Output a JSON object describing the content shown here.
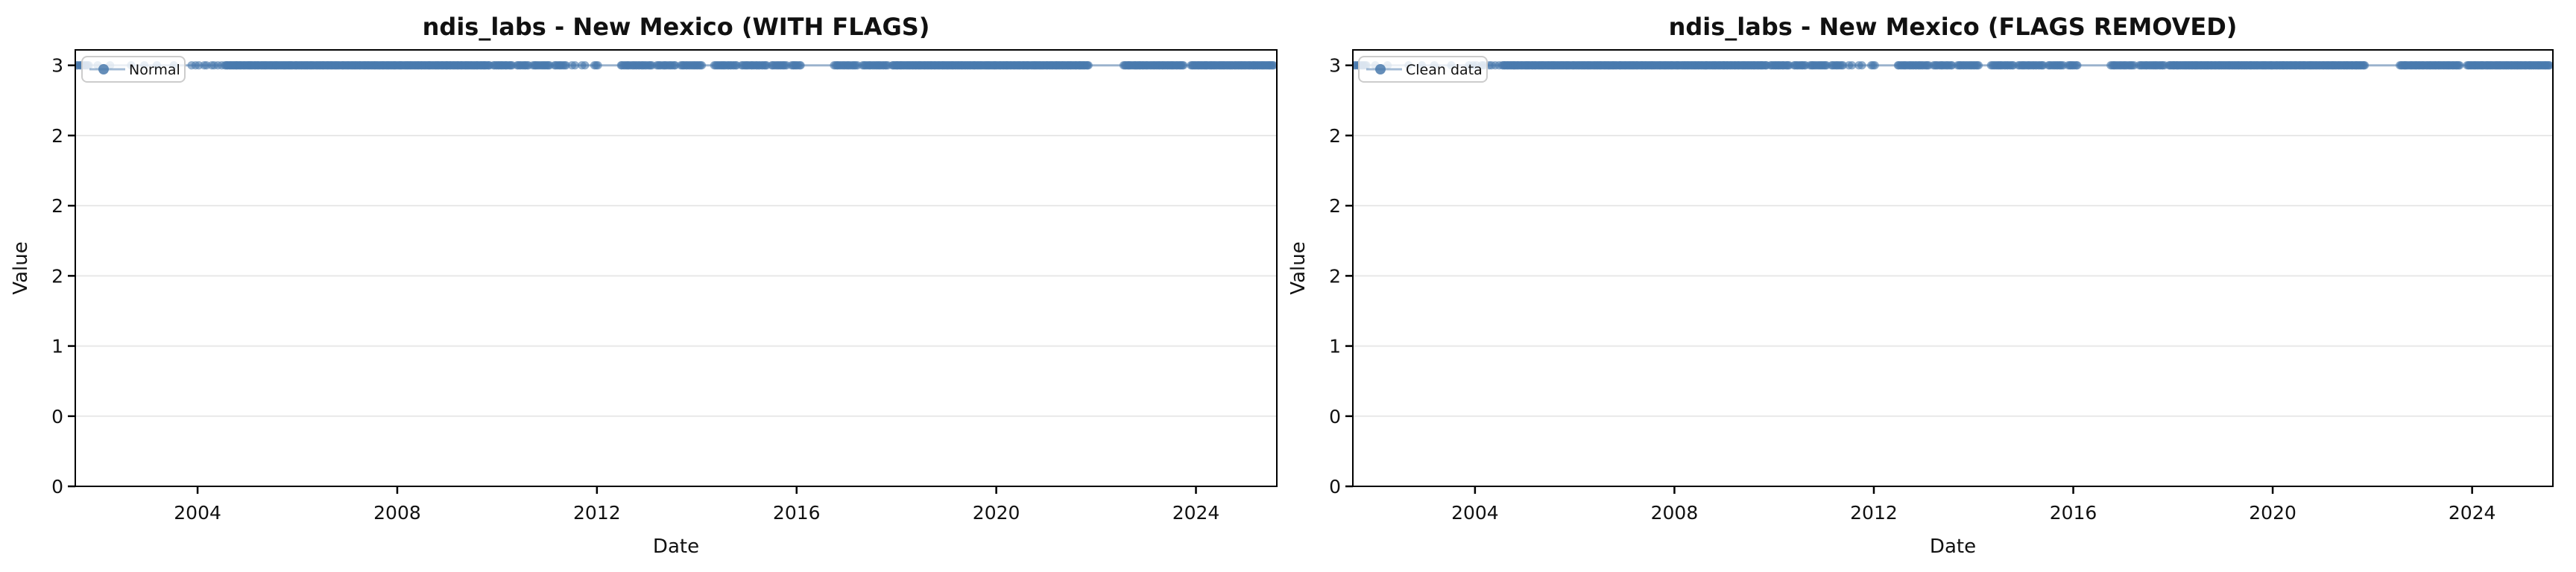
{
  "figure": {
    "background": "#ffffff",
    "marker_color": "#4a7aad",
    "marker_opacity": 0.6,
    "line_color": "#4a7aad",
    "line_opacity": 0.5,
    "grid_color": "#e8e8e8",
    "spine_color": "#000000",
    "legend_border_color": "#cccccc",
    "text_color": "#111111"
  },
  "chart_data": [
    {
      "type": "scatter",
      "title": "ndis_labs - New Mexico (WITH FLAGS)",
      "xlabel": "Date",
      "ylabel": "Value",
      "legend_label": "Normal",
      "legend_position": "upper left",
      "grid": "horizontal",
      "xlim": [
        2001.55,
        2025.62
      ],
      "ylim": [
        0,
        3.11
      ],
      "x_ticks": [
        2004,
        2008,
        2012,
        2016,
        2020,
        2024
      ],
      "y_ticks": {
        "values": [
          0,
          0.5,
          1,
          1.5,
          2,
          2.5,
          3
        ],
        "labels": [
          "0",
          "0",
          "1",
          "2",
          "2",
          "2",
          "3"
        ]
      },
      "series_value": 3.0,
      "segments": [
        {
          "start": 2001.58,
          "end": 2001.82,
          "count": 10
        },
        {
          "start": 2002.0,
          "end": 2003.55,
          "count": 6
        },
        {
          "start": 2003.88,
          "end": 2004.5,
          "count": 9
        },
        {
          "start": 2004.55,
          "end": 2009.85,
          "count": 265
        },
        {
          "start": 2009.93,
          "end": 2010.3,
          "count": 17
        },
        {
          "start": 2010.4,
          "end": 2010.63,
          "count": 10
        },
        {
          "start": 2010.72,
          "end": 2011.05,
          "count": 14
        },
        {
          "start": 2011.15,
          "end": 2011.38,
          "count": 9
        },
        {
          "start": 2011.5,
          "end": 2011.56,
          "count": 2
        },
        {
          "start": 2011.7,
          "end": 2011.76,
          "count": 2
        },
        {
          "start": 2011.95,
          "end": 2012.02,
          "count": 3
        },
        {
          "start": 2012.48,
          "end": 2013.1,
          "count": 24
        },
        {
          "start": 2013.2,
          "end": 2013.57,
          "count": 14
        },
        {
          "start": 2013.68,
          "end": 2014.1,
          "count": 17
        },
        {
          "start": 2014.35,
          "end": 2014.8,
          "count": 18
        },
        {
          "start": 2014.9,
          "end": 2015.4,
          "count": 20
        },
        {
          "start": 2015.5,
          "end": 2015.8,
          "count": 12
        },
        {
          "start": 2015.9,
          "end": 2016.08,
          "count": 8
        },
        {
          "start": 2016.75,
          "end": 2017.22,
          "count": 18
        },
        {
          "start": 2017.32,
          "end": 2017.83,
          "count": 20
        },
        {
          "start": 2017.92,
          "end": 2021.85,
          "count": 198
        },
        {
          "start": 2022.55,
          "end": 2023.75,
          "count": 56
        },
        {
          "start": 2023.9,
          "end": 2025.56,
          "count": 80
        }
      ]
    },
    {
      "type": "scatter",
      "title": "ndis_labs - New Mexico (FLAGS REMOVED)",
      "xlabel": "Date",
      "ylabel": "Value",
      "legend_label": "Clean data",
      "legend_position": "upper left",
      "grid": "horizontal",
      "xlim": [
        2001.55,
        2025.62
      ],
      "ylim": [
        0,
        3.11
      ],
      "x_ticks": [
        2004,
        2008,
        2012,
        2016,
        2020,
        2024
      ],
      "y_ticks": {
        "values": [
          0,
          0.5,
          1,
          1.5,
          2,
          2.5,
          3
        ],
        "labels": [
          "0",
          "0",
          "1",
          "2",
          "2",
          "2",
          "3"
        ]
      },
      "series_value": 3.0,
      "segments": [
        {
          "start": 2001.58,
          "end": 2001.82,
          "count": 10
        },
        {
          "start": 2002.0,
          "end": 2003.55,
          "count": 6
        },
        {
          "start": 2003.88,
          "end": 2004.5,
          "count": 9
        },
        {
          "start": 2004.55,
          "end": 2009.85,
          "count": 265
        },
        {
          "start": 2009.93,
          "end": 2010.3,
          "count": 17
        },
        {
          "start": 2010.4,
          "end": 2010.63,
          "count": 10
        },
        {
          "start": 2010.72,
          "end": 2011.05,
          "count": 14
        },
        {
          "start": 2011.15,
          "end": 2011.38,
          "count": 9
        },
        {
          "start": 2011.5,
          "end": 2011.56,
          "count": 2
        },
        {
          "start": 2011.7,
          "end": 2011.76,
          "count": 2
        },
        {
          "start": 2011.95,
          "end": 2012.02,
          "count": 3
        },
        {
          "start": 2012.48,
          "end": 2013.1,
          "count": 24
        },
        {
          "start": 2013.2,
          "end": 2013.57,
          "count": 14
        },
        {
          "start": 2013.68,
          "end": 2014.1,
          "count": 17
        },
        {
          "start": 2014.35,
          "end": 2014.8,
          "count": 18
        },
        {
          "start": 2014.9,
          "end": 2015.4,
          "count": 20
        },
        {
          "start": 2015.5,
          "end": 2015.8,
          "count": 12
        },
        {
          "start": 2015.9,
          "end": 2016.08,
          "count": 8
        },
        {
          "start": 2016.75,
          "end": 2017.22,
          "count": 18
        },
        {
          "start": 2017.32,
          "end": 2017.83,
          "count": 20
        },
        {
          "start": 2017.92,
          "end": 2021.85,
          "count": 198
        },
        {
          "start": 2022.55,
          "end": 2023.75,
          "count": 56
        },
        {
          "start": 2023.9,
          "end": 2025.56,
          "count": 80
        }
      ]
    }
  ]
}
